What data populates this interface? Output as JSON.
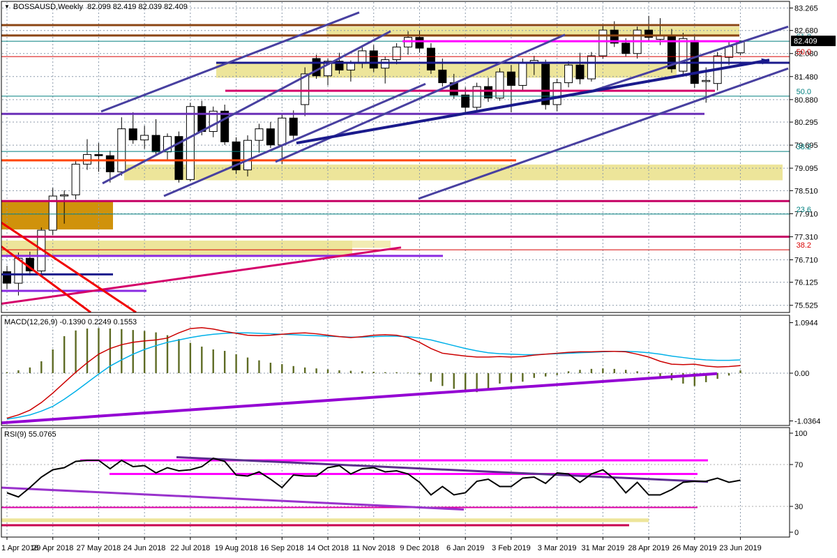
{
  "ui": {
    "collapse_icon": "▼"
  },
  "price_axis": {
    "ticks": [
      83.265,
      82.68,
      82.08,
      81.48,
      80.88,
      80.295,
      79.695,
      79.095,
      78.51,
      77.91,
      77.31,
      76.71,
      76.125,
      75.525
    ],
    "current_price": "82.409",
    "current_bg": "#000000",
    "current_fg": "#FFFFFF"
  },
  "time_axis": {
    "labels": [
      "1 Apr 2018",
      "29 Apr 2018",
      "27 May 2018",
      "24 Jun 2018",
      "22 Jul 2018",
      "19 Aug 2018",
      "16 Sep 2018",
      "14 Oct 2018",
      "11 Nov 2018",
      "9 Dec 2018",
      "6 Jan 2019",
      "3 Feb 2019",
      "3 Mar 2019",
      "31 Mar 2019",
      "28 Apr 2019",
      "26 May 2019",
      "23 Jun 2019"
    ]
  },
  "chart_data": [
    {
      "type": "candlestick",
      "symbol": "BOSSAUSD",
      "timeframe": "Weekly",
      "title": "BOSSAUSD,Weekly  82.099 82.419 82.039 82.409",
      "ohlc_display": {
        "open": "82.099",
        "high": "82.419",
        "low": "82.039",
        "close": "82.409"
      },
      "ylim": [
        75.34,
        83.44
      ],
      "colors": {
        "bull": "#FFFFFF",
        "bear": "#000000",
        "wick": "#000000",
        "grid": "#8C9AAB"
      },
      "candles": [
        [
          76.4,
          76.55,
          75.95,
          76.1
        ],
        [
          76.1,
          76.9,
          75.78,
          76.75
        ],
        [
          76.75,
          76.92,
          76.3,
          76.42
        ],
        [
          76.42,
          77.55,
          76.28,
          77.48
        ],
        [
          77.48,
          78.58,
          77.35,
          78.37
        ],
        [
          78.37,
          78.52,
          77.65,
          78.4
        ],
        [
          78.4,
          79.3,
          78.28,
          79.2
        ],
        [
          79.2,
          79.85,
          79.05,
          79.45
        ],
        [
          79.45,
          79.75,
          79.0,
          79.42
        ],
        [
          79.42,
          79.55,
          78.72,
          79.0
        ],
        [
          79.0,
          80.42,
          78.9,
          80.12
        ],
        [
          80.12,
          80.55,
          79.73,
          79.83
        ],
        [
          79.83,
          80.2,
          79.6,
          79.95
        ],
        [
          79.95,
          80.37,
          79.45,
          79.52
        ],
        [
          79.52,
          80.0,
          79.3,
          79.92
        ],
        [
          79.92,
          80.05,
          78.72,
          78.8
        ],
        [
          78.8,
          80.8,
          78.75,
          80.7
        ],
        [
          80.7,
          80.85,
          79.95,
          80.05
        ],
        [
          80.05,
          80.7,
          79.9,
          80.58
        ],
        [
          80.58,
          80.75,
          79.7,
          79.78
        ],
        [
          79.78,
          79.9,
          78.95,
          79.05
        ],
        [
          79.05,
          79.95,
          78.88,
          79.82
        ],
        [
          79.82,
          80.25,
          79.5,
          80.12
        ],
        [
          80.12,
          80.3,
          79.62,
          79.7
        ],
        [
          79.7,
          80.5,
          79.2,
          80.4
        ],
        [
          80.4,
          80.6,
          79.85,
          79.95
        ],
        [
          80.75,
          81.72,
          80.45,
          81.55
        ],
        [
          81.95,
          82.05,
          81.42,
          81.5
        ],
        [
          81.5,
          81.95,
          81.25,
          81.88
        ],
        [
          81.88,
          82.1,
          81.55,
          81.65
        ],
        [
          81.65,
          81.9,
          81.35,
          81.82
        ],
        [
          81.82,
          82.28,
          81.7,
          82.15
        ],
        [
          82.15,
          82.3,
          81.6,
          81.7
        ],
        [
          81.7,
          82.0,
          81.3,
          81.92
        ],
        [
          81.92,
          82.35,
          81.8,
          82.25
        ],
        [
          82.25,
          82.66,
          82.05,
          82.5
        ],
        [
          82.5,
          82.68,
          82.1,
          82.22
        ],
        [
          82.22,
          82.35,
          81.55,
          81.65
        ],
        [
          81.65,
          81.95,
          81.22,
          81.32
        ],
        [
          81.32,
          81.55,
          80.9,
          81.0
        ],
        [
          81.0,
          81.2,
          80.52,
          80.68
        ],
        [
          80.68,
          81.32,
          80.58,
          81.22
        ],
        [
          81.22,
          81.45,
          80.82,
          80.92
        ],
        [
          80.92,
          81.7,
          80.85,
          81.6
        ],
        [
          81.6,
          81.78,
          80.55,
          81.25
        ],
        [
          81.25,
          81.95,
          81.12,
          81.85
        ],
        [
          81.85,
          82.02,
          81.52,
          81.9
        ],
        [
          81.8,
          81.92,
          80.62,
          80.75
        ],
        [
          80.75,
          81.42,
          80.58,
          81.32
        ],
        [
          81.32,
          81.88,
          81.2,
          81.78
        ],
        [
          81.78,
          82.1,
          81.28,
          81.42
        ],
        [
          81.42,
          82.12,
          81.35,
          82.02
        ],
        [
          82.02,
          82.8,
          81.95,
          82.69
        ],
        [
          82.69,
          82.92,
          82.25,
          82.35
        ],
        [
          82.35,
          82.48,
          82.0,
          82.08
        ],
        [
          82.08,
          82.78,
          81.95,
          82.69
        ],
        [
          82.69,
          83.06,
          82.38,
          82.5
        ],
        [
          82.45,
          83.0,
          82.3,
          82.56
        ],
        [
          82.56,
          82.72,
          81.58,
          81.68
        ],
        [
          81.62,
          82.62,
          81.52,
          82.47
        ],
        [
          82.42,
          82.56,
          81.18,
          81.3
        ],
        [
          81.35,
          81.72,
          80.8,
          81.38
        ],
        [
          81.3,
          82.12,
          81.12,
          82.02
        ],
        [
          81.98,
          82.38,
          81.78,
          82.26
        ],
        [
          82.099,
          82.419,
          82.039,
          82.409
        ]
      ],
      "bands": [
        {
          "name": "resistance-zone-top",
          "p1": 82.78,
          "p2": 82.52,
          "x1": 468,
          "x2": 1060,
          "color": "#EDE59A"
        },
        {
          "name": "mid-zone",
          "p1": 81.84,
          "p2": 81.45,
          "x1": 310,
          "x2": 970,
          "color": "#EDE59A"
        },
        {
          "name": "zone-79",
          "p1": 79.19,
          "p2": 78.78,
          "x1": 178,
          "x2": 1122,
          "color": "#EDE59A"
        },
        {
          "name": "orange-demand-zone",
          "p1": 78.24,
          "p2": 77.5,
          "x1": 0,
          "x2": 162,
          "color": "#D0920B"
        },
        {
          "name": "lower-zone",
          "p1": 77.21,
          "p2": 76.8,
          "x1": 0,
          "x2": 505,
          "color": "#EDE59A"
        },
        {
          "name": "lower-zone-tail",
          "p1": 77.21,
          "p2": 77.02,
          "x1": 505,
          "x2": 560,
          "color": "#F2ECB4"
        }
      ],
      "hlines": [
        {
          "price": 82.82,
          "x1": 0,
          "x2": 1060,
          "color": "#8B4513",
          "w": 3
        },
        {
          "price": 82.55,
          "x1": 0,
          "x2": 1060,
          "color": "#8B4513",
          "w": 3
        },
        {
          "price": 82.4,
          "x1": 0,
          "x2": 1132,
          "color": "#007F7F",
          "w": 1
        },
        {
          "price": 82.4,
          "x1": 577,
          "x2": 1060,
          "color": "#FF00FF",
          "w": 3
        },
        {
          "price": 82.0,
          "x1": 0,
          "x2": 1132,
          "color": "#D80000",
          "w": 1
        },
        {
          "price": 81.84,
          "x1": 310,
          "x2": 1140,
          "color": "#1A1A8C",
          "w": 3
        },
        {
          "price": 81.11,
          "x1": 323,
          "x2": 1025,
          "color": "#D4006A",
          "w": 3
        },
        {
          "price": 80.97,
          "x1": 0,
          "x2": 1132,
          "color": "#007F7F",
          "w": 1
        },
        {
          "price": 80.51,
          "x1": 0,
          "x2": 1010,
          "color": "#6A2FB8",
          "w": 3
        },
        {
          "price": 79.53,
          "x1": 0,
          "x2": 1132,
          "color": "#007F7F",
          "w": 1
        },
        {
          "price": 79.3,
          "x1": 0,
          "x2": 740,
          "color": "#FF4500",
          "w": 3
        },
        {
          "price": 78.24,
          "x1": 0,
          "x2": 1132,
          "color": "#C50063",
          "w": 3
        },
        {
          "price": 77.9,
          "x1": 0,
          "x2": 1132,
          "color": "#007F7F",
          "w": 1
        },
        {
          "price": 77.31,
          "x1": 0,
          "x2": 1132,
          "color": "#C50063",
          "w": 3
        },
        {
          "price": 76.97,
          "x1": 0,
          "x2": 1132,
          "color": "#D80000",
          "w": 1
        },
        {
          "price": 76.81,
          "x1": 0,
          "x2": 635,
          "color": "#8A2BE2",
          "w": 3
        },
        {
          "price": 76.33,
          "x1": 0,
          "x2": 162,
          "color": "#1A1A8C",
          "w": 3
        },
        {
          "price": 75.9,
          "x1": 0,
          "x2": 210,
          "color": "#8A2BE2",
          "w": 3
        }
      ],
      "fib_labels": [
        {
          "text": "61.8",
          "price": 82.4,
          "color": "#007F7F"
        },
        {
          "text": "50.0",
          "price": 80.97,
          "color": "#007F7F"
        },
        {
          "text": "38.2",
          "price": 79.53,
          "color": "#007F7F"
        },
        {
          "text": "23.6",
          "price": 77.9,
          "color": "#007F7F"
        },
        {
          "text": "50.0",
          "price": 82.0,
          "color": "#D80000"
        },
        {
          "text": "38.2",
          "price": 76.97,
          "color": "#D80000"
        }
      ],
      "tlines": [
        {
          "name": "channel-steep-upper",
          "x1": 145,
          "p1": 80.57,
          "x2": 515,
          "p2": 83.15,
          "color": "#4840A0",
          "w": 3
        },
        {
          "name": "channel-steep-lower",
          "x1": 147,
          "p1": 78.7,
          "x2": 560,
          "p2": 82.66,
          "color": "#4840A0",
          "w": 3
        },
        {
          "name": "channel-steep-lower2",
          "x1": 235,
          "p1": 78.37,
          "x2": 610,
          "p2": 81.29,
          "color": "#4840A0",
          "w": 3
        },
        {
          "name": "mid-ascending",
          "x1": 395,
          "p1": 79.26,
          "x2": 810,
          "p2": 82.57,
          "color": "#4840A0",
          "w": 3
        },
        {
          "name": "right-ascending",
          "x1": 850,
          "p1": 81.11,
          "x2": 1130,
          "p2": 82.78,
          "color": "#4840A0",
          "w": 3
        },
        {
          "name": "long-shallow",
          "x1": 600,
          "p1": 78.3,
          "x2": 1130,
          "p2": 81.69,
          "color": "#4840A0",
          "w": 3
        },
        {
          "name": "navy-support-arrow",
          "x1": 425,
          "p1": 79.75,
          "x2": 1103,
          "p2": 81.91,
          "color": "#1A1A8C",
          "w": 4,
          "arrow": true
        },
        {
          "name": "magenta-ascending",
          "x1": 0,
          "p1": 75.56,
          "x2": 575,
          "p2": 77.03,
          "color": "#D4006A",
          "w": 3
        },
        {
          "name": "red-descending-1",
          "x1": 0,
          "p1": 77.7,
          "x2": 195,
          "p2": 75.34,
          "color": "#F00000",
          "w": 3
        },
        {
          "name": "red-descending-2",
          "x1": 0,
          "p1": 77.08,
          "x2": 130,
          "p2": 75.34,
          "color": "#F00000",
          "w": 3
        }
      ]
    },
    {
      "type": "macd-histogram",
      "label": "MACD(12,26,9) -0.1390 0.2249 0.1553",
      "params": "12,26,9",
      "values_display": [
        "-0.1390",
        "0.2249",
        "0.1553"
      ],
      "scale": {
        "max": 1.0944,
        "min": -1.0364,
        "ticks": [
          "1.0944",
          "0.00",
          "-1.0364"
        ]
      },
      "colors": {
        "histogram": "#5E6B24",
        "signal": "#CC0000",
        "main": "#00B0E8"
      },
      "histogram": [
        0.02,
        0.06,
        0.12,
        0.25,
        0.5,
        0.78,
        0.9,
        0.94,
        0.95,
        0.94,
        0.93,
        0.91,
        0.89,
        0.86,
        0.8,
        0.72,
        0.64,
        0.56,
        0.5,
        0.47,
        0.4,
        0.33,
        0.27,
        0.22,
        0.19,
        0.15,
        0.12,
        0.1,
        0.08,
        0.06,
        0.05,
        0.04,
        0.03,
        0.02,
        0.02,
        0.01,
        -0.03,
        -0.18,
        -0.27,
        -0.33,
        -0.37,
        -0.4,
        -0.33,
        -0.22,
        -0.19,
        -0.18,
        -0.1,
        -0.07,
        -0.04,
        0.04,
        0.07,
        0.09,
        0.1,
        0.09,
        0.07,
        0.04,
        0.03,
        -0.07,
        -0.15,
        -0.22,
        -0.27,
        -0.19,
        -0.12,
        -0.05,
        0.06
      ],
      "line_red": [
        -0.95,
        -0.88,
        -0.78,
        -0.62,
        -0.42,
        -0.2,
        0.02,
        0.22,
        0.4,
        0.52,
        0.6,
        0.65,
        0.68,
        0.7,
        0.74,
        0.85,
        0.94,
        0.96,
        0.93,
        0.88,
        0.84,
        0.8,
        0.79,
        0.8,
        0.82,
        0.84,
        0.85,
        0.83,
        0.8,
        0.77,
        0.75,
        0.77,
        0.8,
        0.81,
        0.8,
        0.75,
        0.65,
        0.52,
        0.42,
        0.39,
        0.36,
        0.34,
        0.34,
        0.35,
        0.34,
        0.35,
        0.38,
        0.4,
        0.42,
        0.44,
        0.45,
        0.45,
        0.46,
        0.46,
        0.45,
        0.4,
        0.34,
        0.25,
        0.19,
        0.18,
        0.19,
        0.15,
        0.13,
        0.14,
        0.16
      ],
      "line_cyan": [
        -0.97,
        -0.93,
        -0.88,
        -0.8,
        -0.7,
        -0.55,
        -0.38,
        -0.2,
        -0.02,
        0.15,
        0.28,
        0.4,
        0.5,
        0.58,
        0.65,
        0.7,
        0.75,
        0.79,
        0.82,
        0.84,
        0.85,
        0.85,
        0.84,
        0.83,
        0.82,
        0.81,
        0.8,
        0.79,
        0.78,
        0.77,
        0.76,
        0.76,
        0.77,
        0.78,
        0.78,
        0.77,
        0.74,
        0.7,
        0.64,
        0.58,
        0.52,
        0.47,
        0.43,
        0.41,
        0.4,
        0.39,
        0.39,
        0.4,
        0.41,
        0.42,
        0.43,
        0.44,
        0.45,
        0.46,
        0.46,
        0.45,
        0.43,
        0.4,
        0.36,
        0.33,
        0.3,
        0.28,
        0.27,
        0.27,
        0.28
      ],
      "trendline": {
        "name": "macd-ascending-trendline",
        "x1": 0,
        "v1": -1.05,
        "x2": 1028,
        "v2": -0.01,
        "color": "#9400D3",
        "w": 4
      }
    },
    {
      "type": "rsi",
      "label": "RSI(9) 55.0765",
      "period": 9,
      "value_display": "55.0765",
      "scale": {
        "ticks": [
          100,
          70,
          30,
          0
        ]
      },
      "line_color": "#000000",
      "values": [
        43,
        39,
        48,
        58,
        65,
        67,
        73,
        74,
        74,
        66,
        74,
        68,
        69,
        62,
        67,
        64,
        65,
        68,
        76,
        73,
        60,
        59,
        63,
        56,
        48,
        60,
        59,
        59,
        67,
        69,
        61,
        66,
        67,
        63,
        64,
        61,
        53,
        41,
        49,
        41,
        43,
        54,
        56,
        49,
        49,
        57,
        58,
        52,
        62,
        61,
        53,
        61,
        65,
        56,
        43,
        53,
        41,
        41,
        46,
        53,
        54,
        54,
        57,
        53,
        55
      ],
      "overlays": {
        "hlines": [
          {
            "name": "rsi-upper-magenta",
            "v": 74,
            "x1": 115,
            "x2": 1015,
            "color": "#FF00FF",
            "w": 3
          },
          {
            "name": "rsi-mid-magenta",
            "v": 61,
            "x1": 157,
            "x2": 1000,
            "color": "#FF00FF",
            "w": 3
          },
          {
            "name": "rsi-lower-magenta",
            "v": 29,
            "x1": 0,
            "x2": 1000,
            "color": "#DD00AA",
            "w": 2
          },
          {
            "name": "rsi-crimson",
            "v": 12,
            "x1": 0,
            "x2": 902,
            "color": "#C8004E",
            "w": 3
          }
        ],
        "tlines": [
          {
            "name": "rsi-descending-upper",
            "x1": 253,
            "v1": 77,
            "x2": 1015,
            "v2": 53.5,
            "color": "#5B2D8E",
            "w": 3
          },
          {
            "name": "rsi-descending-lower",
            "x1": 0,
            "v1": 48,
            "x2": 665,
            "v2": 27,
            "color": "#9932CC",
            "w": 3
          }
        ],
        "band": {
          "name": "rsi-yellow-band",
          "v1": 18.5,
          "v2": 15,
          "x1": 0,
          "x2": 930,
          "color": "#EDE59A"
        }
      }
    }
  ]
}
